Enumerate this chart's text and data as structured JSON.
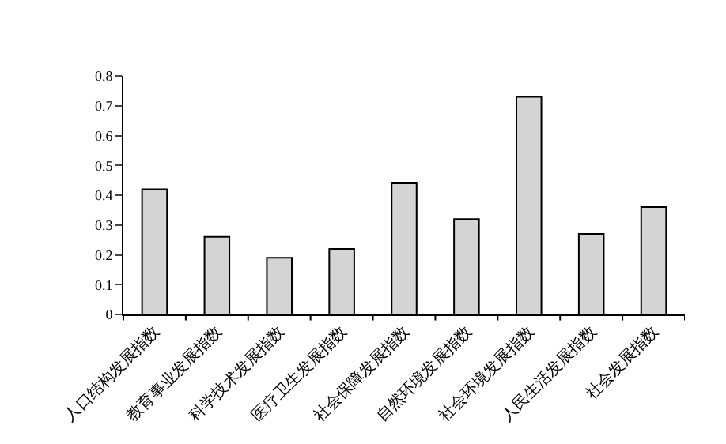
{
  "chart_data": {
    "type": "bar",
    "categories": [
      "人口结构发展指数",
      "教育事业发展指数",
      "科学技术发展指数",
      "医疗卫生发展指数",
      "社会保障发展指数",
      "自然环境发展指数",
      "社会环境发展指数",
      "人民生活发展指数",
      "社会发展指数"
    ],
    "values": [
      0.42,
      0.26,
      0.19,
      0.22,
      0.44,
      0.32,
      0.73,
      0.27,
      0.36
    ],
    "color": "#d4d4d4",
    "ylim": [
      0,
      0.8
    ],
    "yticks": [
      0,
      0.1,
      0.2,
      0.3,
      0.4,
      0.5,
      0.6,
      0.7,
      0.8
    ]
  }
}
